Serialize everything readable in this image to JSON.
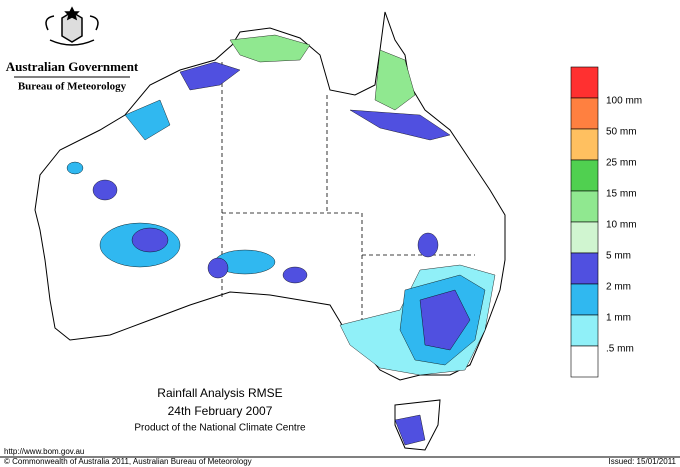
{
  "header": {
    "government": "Australian Government",
    "agency": "Bureau of Meteorology"
  },
  "legend": {
    "colors": [
      "#ff3030",
      "#ff8040",
      "#ffc060",
      "#50d050",
      "#90e890",
      "#d0f5d0",
      "#5050e0",
      "#30b8f0",
      "#90f0f8",
      "#ffffff"
    ],
    "labels": [
      "100 mm",
      "50 mm",
      "25 mm",
      "15 mm",
      "10 mm",
      "5 mm",
      "2 mm",
      "1 mm",
      ".5 mm"
    ]
  },
  "title": {
    "line1": "Rainfall Analysis RMSE",
    "line2": "24th  February  2007",
    "line3": "Product of the National Climate Centre"
  },
  "footer": {
    "url": "http://www.bom.gov.au",
    "copyright": "© Commonwealth of Australia 2011, Australian Bureau of Meteorology",
    "issued": "Issued: 15/01/2011"
  }
}
